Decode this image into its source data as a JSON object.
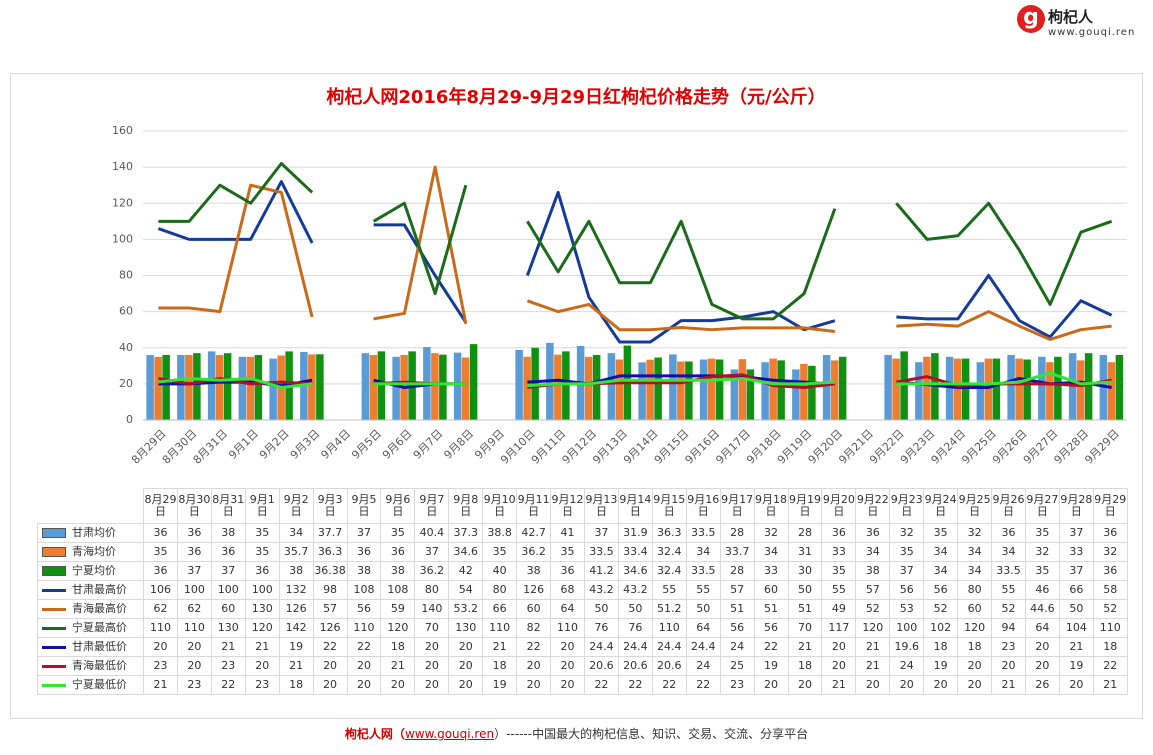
{
  "logo": {
    "mark": "g",
    "name": "枸杞人",
    "url": "www.gouqi.ren"
  },
  "chart_data": {
    "type": "combo",
    "title": "枸杞人网2016年8月29-9月29日红枸杞价格走势（元/公斤）",
    "categories": [
      "8月29日",
      "8月30日",
      "8月31日",
      "9月1日",
      "9月2日",
      "9月3日",
      "9月4日",
      "9月5日",
      "9月6日",
      "9月7日",
      "9月8日",
      "9月9日",
      "9月10日",
      "9月11日",
      "9月12日",
      "9月13日",
      "9月14日",
      "9月15日",
      "9月16日",
      "9月17日",
      "9月18日",
      "9月19日",
      "9月20日",
      "9月21日",
      "9月22日",
      "9月23日",
      "9月24日",
      "9月25日",
      "9月26日",
      "9月27日",
      "9月28日",
      "9月29日"
    ],
    "ylim": [
      0,
      160
    ],
    "yticks": [
      0,
      20,
      40,
      60,
      80,
      100,
      120,
      140,
      160
    ],
    "grid": true,
    "series": [
      {
        "name": "甘肃均价",
        "type": "bar",
        "color": "#5b9bd5",
        "values": [
          36,
          36,
          38,
          35,
          34,
          37.7,
          null,
          37,
          35,
          40.4,
          37.3,
          null,
          38.8,
          42.7,
          41,
          37,
          31.9,
          36.3,
          33.5,
          28,
          32,
          28,
          36,
          null,
          36,
          32,
          35,
          32,
          36,
          35,
          37,
          36
        ]
      },
      {
        "name": "青海均价",
        "type": "bar",
        "color": "#ed7d31",
        "values": [
          35,
          36,
          36,
          35,
          35.7,
          36.3,
          null,
          36,
          36,
          37,
          34.6,
          null,
          35,
          36.2,
          35,
          33.5,
          33.4,
          32.4,
          34,
          33.7,
          34,
          31,
          33,
          null,
          34,
          35,
          34,
          34,
          34,
          32,
          33,
          32
        ]
      },
      {
        "name": "宁夏均价",
        "type": "bar",
        "color": "#119111",
        "values": [
          36,
          37,
          37,
          36,
          38,
          36.38,
          null,
          38,
          38,
          36.2,
          42,
          null,
          40,
          38,
          36,
          41.2,
          34.6,
          32.4,
          33.5,
          28,
          33,
          30,
          35,
          null,
          38,
          37,
          34,
          34,
          33.5,
          35,
          37,
          36
        ]
      },
      {
        "name": "甘肃最高价",
        "type": "line",
        "color": "#143c96",
        "values": [
          106,
          100,
          100,
          100,
          132,
          98,
          null,
          108,
          108,
          80,
          54,
          null,
          80,
          126,
          68,
          43.2,
          43.2,
          55,
          55,
          57,
          60,
          50,
          55,
          null,
          57,
          56,
          56,
          80,
          55,
          46,
          66,
          58
        ]
      },
      {
        "name": "青海最高价",
        "type": "line",
        "color": "#c96a1b",
        "values": [
          62,
          62,
          60,
          130,
          126,
          57,
          null,
          56,
          59,
          140,
          53.2,
          null,
          66,
          60,
          64,
          50,
          50,
          51.2,
          50,
          51,
          51,
          51,
          49,
          null,
          52,
          53,
          52,
          60,
          52,
          44.6,
          50,
          52
        ]
      },
      {
        "name": "宁夏最高价",
        "type": "line",
        "color": "#1b6b1b",
        "values": [
          110,
          110,
          130,
          120,
          142,
          126,
          null,
          110,
          120,
          70,
          130,
          null,
          110,
          82,
          110,
          76,
          76,
          110,
          64,
          56,
          56,
          70,
          117,
          null,
          120,
          100,
          102,
          120,
          94,
          64,
          104,
          110
        ]
      },
      {
        "name": "甘肃最低价",
        "type": "line",
        "color": "#1010a8",
        "values": [
          20,
          20,
          21,
          21,
          19,
          22,
          null,
          22,
          18,
          20,
          20,
          null,
          21,
          22,
          20,
          24.4,
          24.4,
          24.4,
          24.4,
          24,
          22,
          21,
          20,
          null,
          21,
          19.6,
          18,
          18,
          23,
          20,
          21,
          18
        ]
      },
      {
        "name": "青海最低价",
        "type": "line",
        "color": "#b0102a",
        "values": [
          23,
          20,
          23,
          20,
          21,
          20,
          null,
          20,
          21,
          20,
          20,
          null,
          18,
          20,
          20,
          20.6,
          20.6,
          20.6,
          24,
          25,
          19,
          18,
          20,
          null,
          21,
          24,
          19,
          20,
          20,
          20,
          19,
          22
        ]
      },
      {
        "name": "宁夏最低价",
        "type": "line",
        "color": "#33e633",
        "values": [
          21,
          23,
          22,
          23,
          18,
          20,
          null,
          20,
          20,
          20,
          20,
          null,
          19,
          20,
          20,
          22,
          22,
          22,
          22,
          23,
          20,
          20,
          21,
          null,
          20,
          20,
          20,
          20,
          21,
          26,
          20,
          21
        ]
      }
    ]
  },
  "footer": {
    "site": "枸杞人网（",
    "url": "www.gouqi.ren",
    "tagline": "）------中国最大的枸杞信息、知识、交易、交流、分享平台"
  }
}
